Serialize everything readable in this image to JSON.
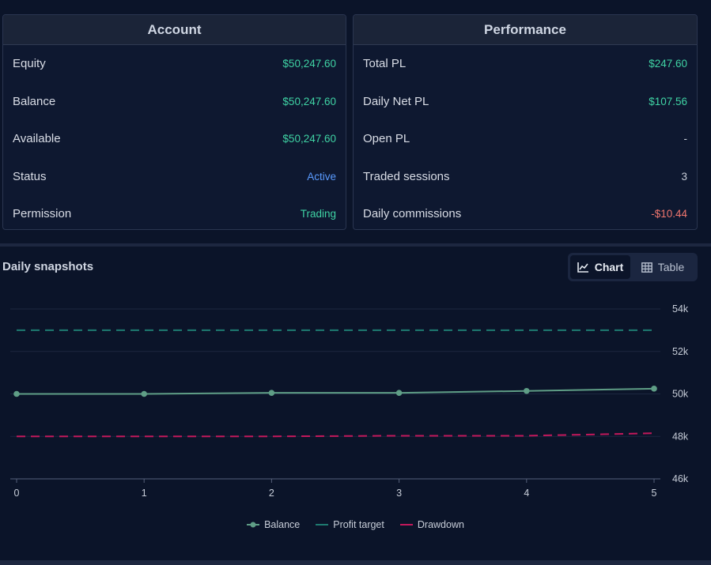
{
  "account": {
    "title": "Account",
    "rows": [
      {
        "label": "Equity",
        "value": "$50,247.60"
      },
      {
        "label": "Balance",
        "value": "$50,247.60"
      },
      {
        "label": "Available",
        "value": "$50,247.60"
      },
      {
        "label": "Status",
        "value": "Active"
      },
      {
        "label": "Permission",
        "value": "Trading"
      }
    ]
  },
  "performance": {
    "title": "Performance",
    "rows": [
      {
        "label": "Total PL",
        "value": "$247.60"
      },
      {
        "label": "Daily Net PL",
        "value": "$107.56"
      },
      {
        "label": "Open PL",
        "value": "-"
      },
      {
        "label": "Traded sessions",
        "value": "3"
      },
      {
        "label": "Daily commissions",
        "value": "-$10.44"
      }
    ]
  },
  "snapshots": {
    "title": "Daily snapshots",
    "view_toggle": {
      "chart_label": "Chart",
      "table_label": "Table",
      "selected": "Chart"
    }
  },
  "colors": {
    "positive": "#3fd3a4",
    "negative": "#f0766e",
    "active": "#5a9bff",
    "balance": "#5f9e86",
    "profit_target": "#1e7a70",
    "drawdown": "#c2185b"
  },
  "chart_data": {
    "type": "line",
    "x": [
      0,
      1,
      2,
      3,
      4,
      5
    ],
    "ylim": [
      46000,
      54000
    ],
    "yticks": [
      46000,
      48000,
      50000,
      52000,
      54000
    ],
    "ytick_labels": [
      "46k",
      "48k",
      "50k",
      "52k",
      "54k"
    ],
    "grid": true,
    "legend_position": "bottom",
    "series": [
      {
        "name": "Balance",
        "values": [
          50000,
          50000,
          50050,
          50050,
          50140,
          50247.6
        ],
        "style": "line-with-markers"
      },
      {
        "name": "Profit target",
        "values": [
          53000,
          53000,
          53000,
          53000,
          53000,
          53000
        ],
        "style": "dashed"
      },
      {
        "name": "Drawdown",
        "values": [
          48000,
          48000,
          48000,
          48030,
          48030,
          48150
        ],
        "style": "dashed"
      }
    ]
  }
}
